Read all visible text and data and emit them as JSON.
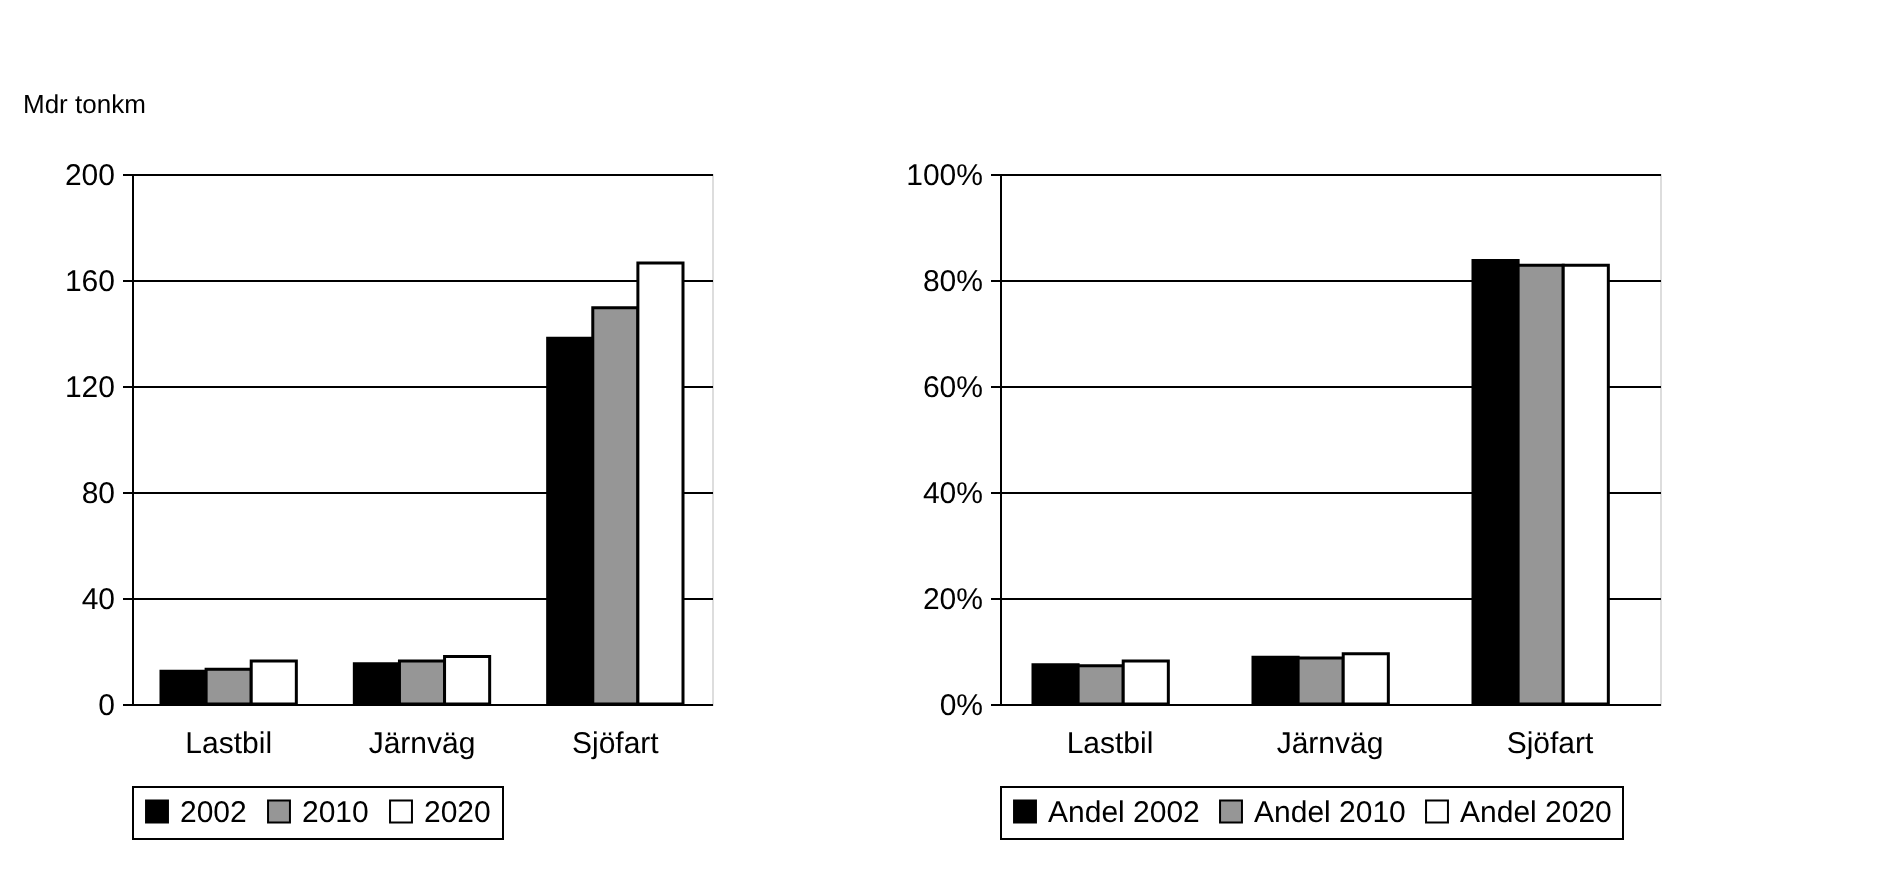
{
  "chart_data": [
    {
      "type": "bar",
      "ylabel": "Mdr tonkm",
      "categories": [
        "Lastbil",
        "Järnväg",
        "Sjöfart"
      ],
      "series": [
        {
          "name": "2002",
          "color": "#000000",
          "values": [
            12.4,
            15.2,
            138
          ]
        },
        {
          "name": "2010",
          "color": "#969696",
          "values": [
            13.1,
            16.2,
            149.5
          ]
        },
        {
          "name": "2020",
          "color": "#ffffff",
          "values": [
            16.2,
            17.9,
            166.4
          ]
        }
      ],
      "ylim": [
        0,
        200
      ],
      "yticks": [
        0,
        40,
        80,
        120,
        160,
        200
      ],
      "grid": "y",
      "legend": "bottom"
    },
    {
      "type": "bar",
      "categories": [
        "Lastbil",
        "Järnväg",
        "Sjöfart"
      ],
      "series": [
        {
          "name": "Andel 2002",
          "color": "#000000",
          "values": [
            7.4,
            8.8,
            83.7
          ]
        },
        {
          "name": "Andel 2010",
          "color": "#969696",
          "values": [
            7.2,
            8.7,
            82.8
          ]
        },
        {
          "name": "Andel 2020",
          "color": "#ffffff",
          "values": [
            8.1,
            9.5,
            82.8
          ]
        }
      ],
      "ylim": [
        0,
        100
      ],
      "yticks": [
        {
          "value": 0,
          "label": "0%"
        },
        {
          "value": 20,
          "label": "20%"
        },
        {
          "value": 40,
          "label": "40%"
        },
        {
          "value": 60,
          "label": "60%"
        },
        {
          "value": 80,
          "label": "80%"
        },
        {
          "value": 100,
          "label": "100%"
        }
      ],
      "grid": "y",
      "legend": "bottom"
    }
  ]
}
